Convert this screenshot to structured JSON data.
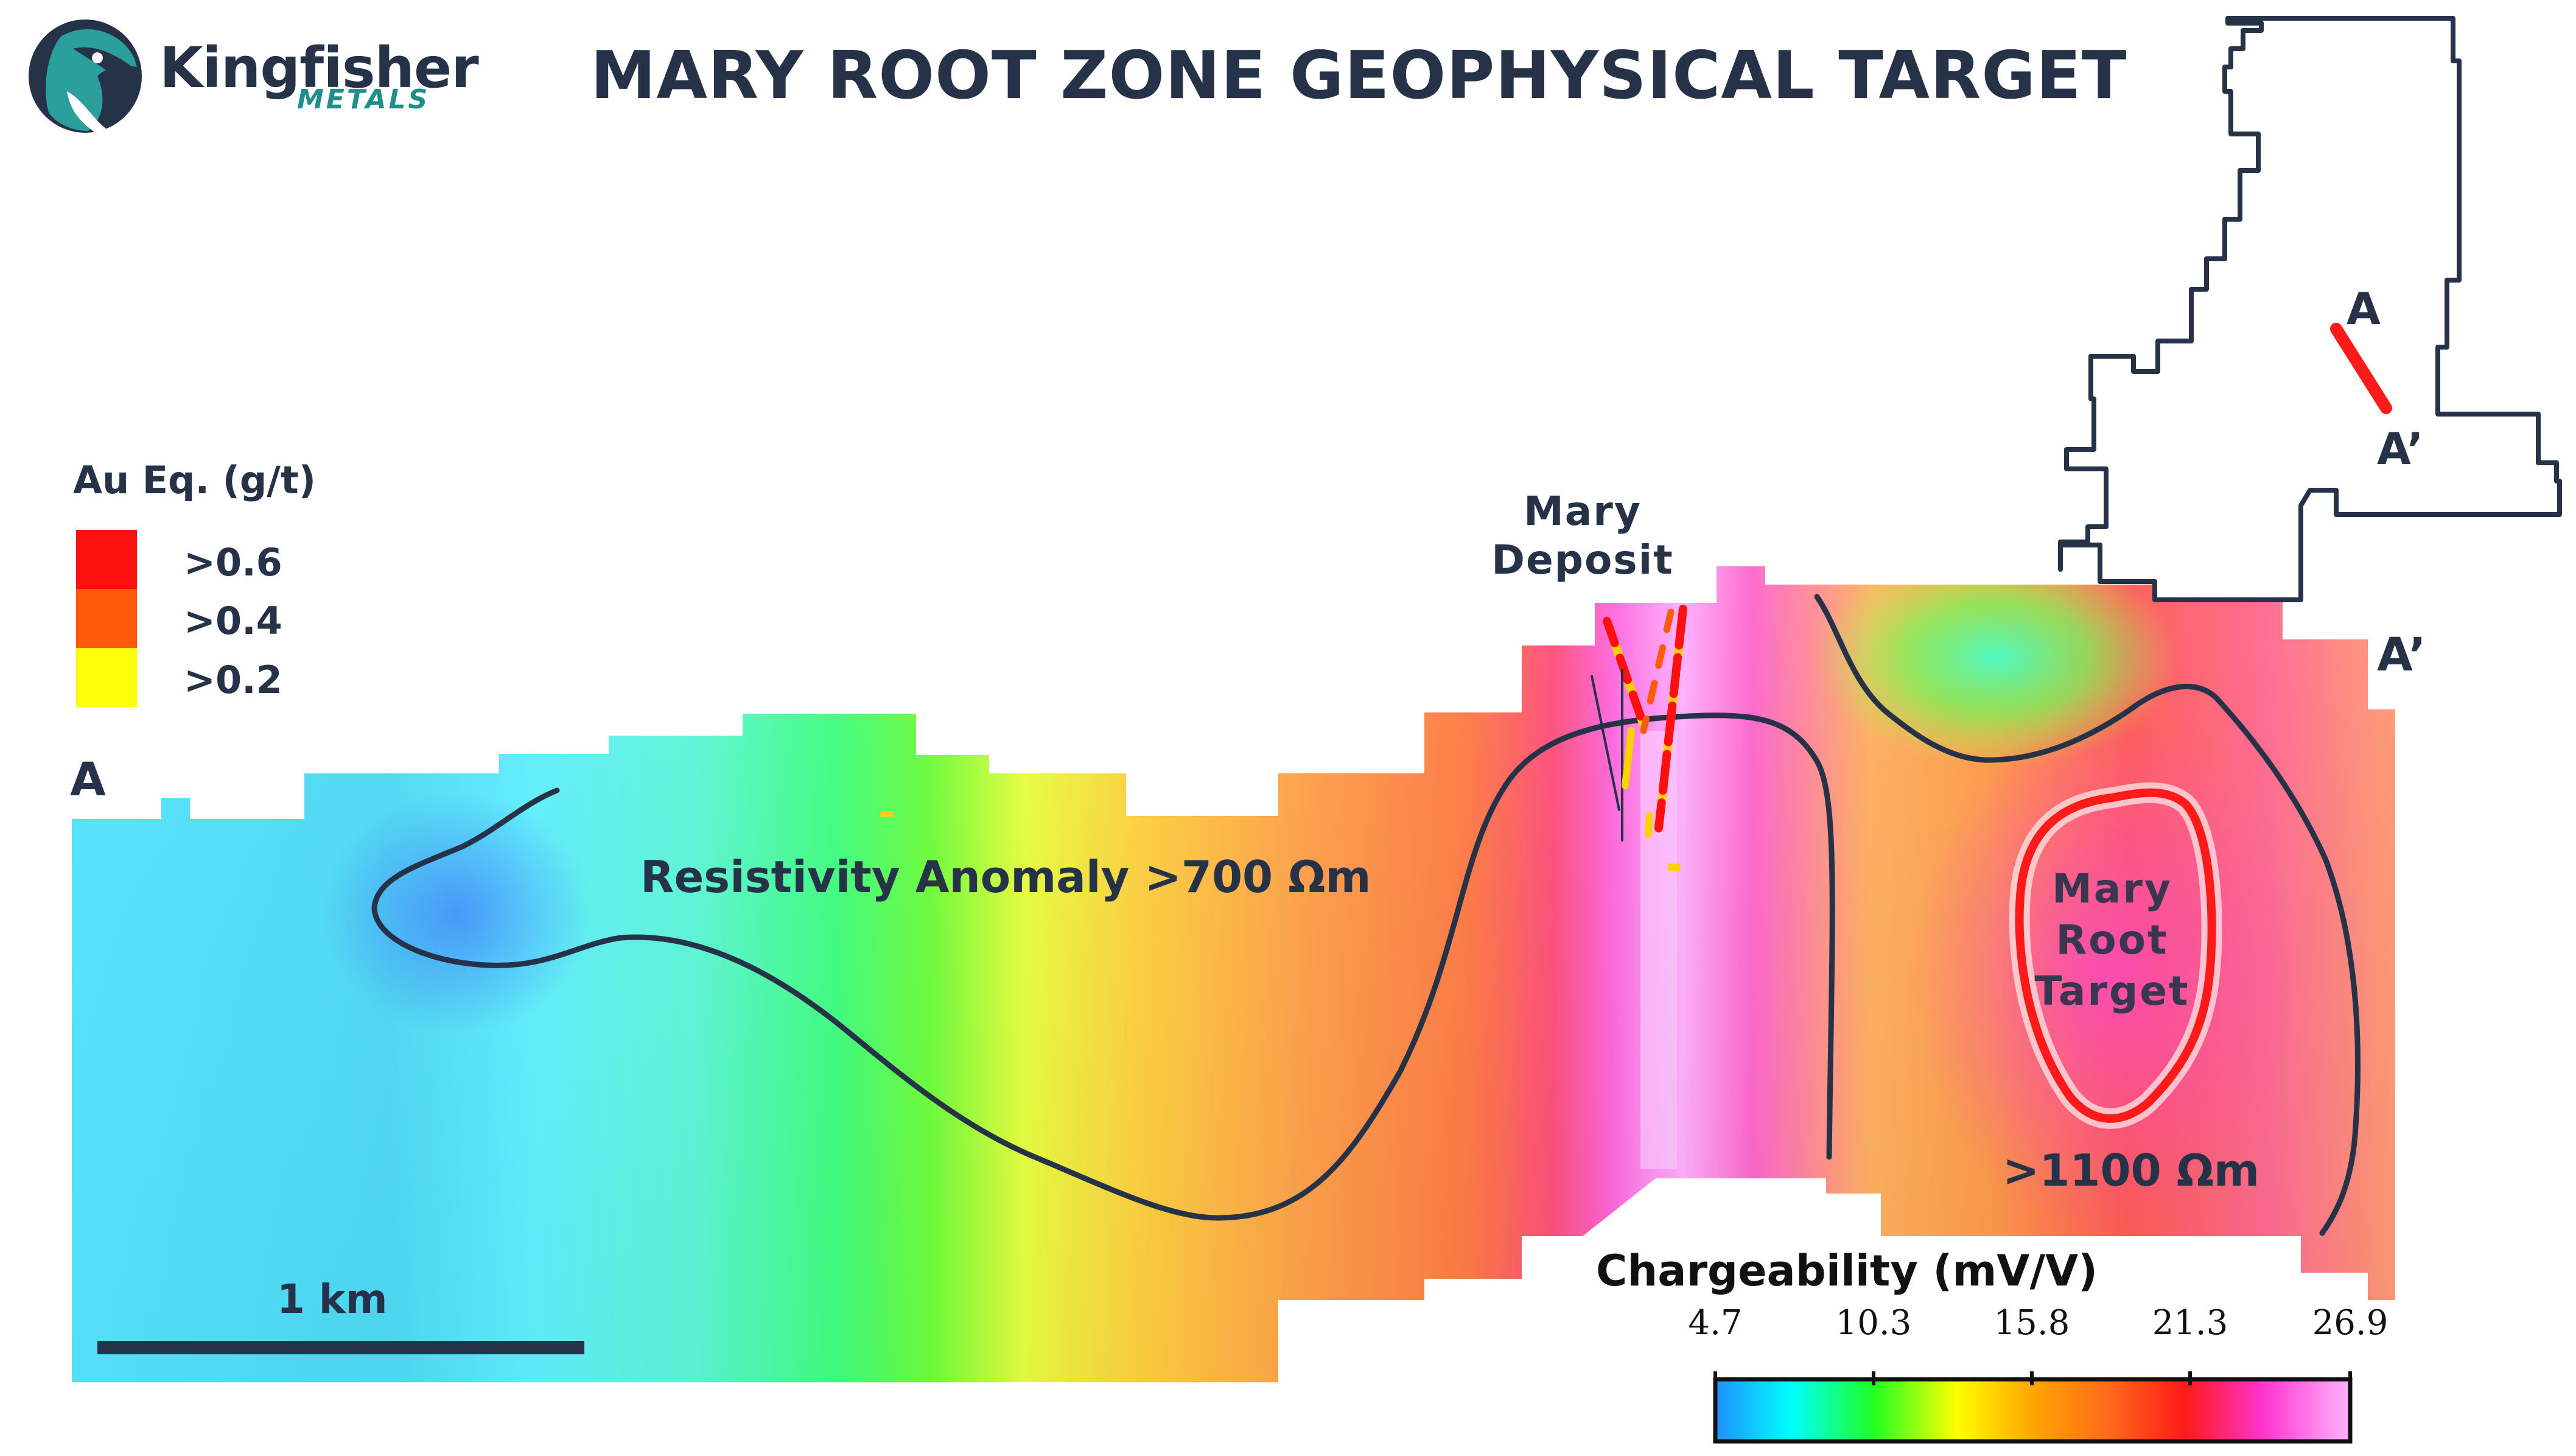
{
  "title": "MARY ROOT ZONE GEOPHYSICAL TARGET",
  "brand": {
    "name": "Kingfisher",
    "sub": "METALS",
    "logo_icon": "kingfisher-bird-icon",
    "colors": {
      "text": "#263247",
      "accent": "#1f8f8c"
    }
  },
  "legend": {
    "title": "Au Eq. (g/t)",
    "items": [
      {
        "label": ">0.6",
        "color": "#ff1010"
      },
      {
        "label": ">0.4",
        "color": "#ff5a0a"
      },
      {
        "label": ">0.2",
        "color": "#ffff0a"
      }
    ]
  },
  "section": {
    "start_label": "A",
    "end_label": "A’",
    "deposit_label": "Mary\nDeposit",
    "target_label": "Mary\nRoot\nTarget",
    "anomaly_label": "Resistivity Anomaly >700 Ωm",
    "high_label": ">1100 Ωm"
  },
  "inset": {
    "a_label": "A",
    "a_prime_label": "A’",
    "line_color": "#ff1a1a"
  },
  "scale_bar": {
    "label": "1 km"
  },
  "colorbar": {
    "title": "Chargeability (mV/V)",
    "ticks": [
      "4.7",
      "10.3",
      "15.8",
      "21.3",
      "26.9"
    ],
    "stops": [
      "#1e90ff",
      "#00ffff",
      "#22ff22",
      "#ffff00",
      "#ffa500",
      "#ff6a1a",
      "#ff1a1a",
      "#ff33cc",
      "#ffb3ff"
    ]
  }
}
